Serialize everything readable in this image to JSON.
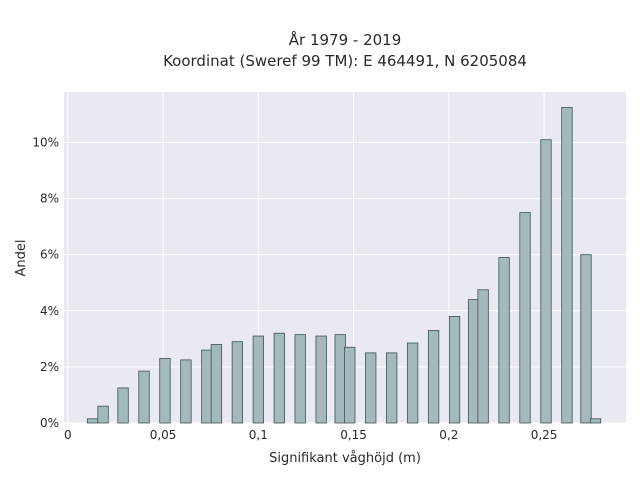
{
  "chart_data": {
    "type": "bar",
    "title_lines": [
      "År 1979 - 2019",
      "Koordinat (Sweref 99 TM): E 464491, N 6205084"
    ],
    "xlabel": "Signifikant våghöjd (m)",
    "ylabel": "Andel",
    "xlim": [
      -0.002,
      0.293
    ],
    "ylim": [
      0,
      0.118
    ],
    "grid": true,
    "x_ticks": [
      {
        "value": 0,
        "label": "0"
      },
      {
        "value": 0.05,
        "label": "0,05"
      },
      {
        "value": 0.1,
        "label": "0,1"
      },
      {
        "value": 0.15,
        "label": "0,15"
      },
      {
        "value": 0.2,
        "label": "0,2"
      },
      {
        "value": 0.25,
        "label": "0,25"
      }
    ],
    "y_ticks": [
      {
        "value": 0,
        "label": "0%"
      },
      {
        "value": 0.02,
        "label": "2%"
      },
      {
        "value": 0.04,
        "label": "4%"
      },
      {
        "value": 0.06,
        "label": "6%"
      },
      {
        "value": 0.08,
        "label": "8%"
      },
      {
        "value": 0.1,
        "label": "10%"
      }
    ],
    "bar_width": 0.0055,
    "bar_color": "#a3b9bb",
    "bar_edge_color": "#3f5453",
    "plot_background": "#e9e9f1",
    "bars": [
      {
        "x": 0.013,
        "y": 0.0015
      },
      {
        "x": 0.0185,
        "y": 0.006
      },
      {
        "x": 0.029,
        "y": 0.0125
      },
      {
        "x": 0.04,
        "y": 0.0185
      },
      {
        "x": 0.051,
        "y": 0.023
      },
      {
        "x": 0.062,
        "y": 0.0225
      },
      {
        "x": 0.073,
        "y": 0.026
      },
      {
        "x": 0.078,
        "y": 0.028
      },
      {
        "x": 0.089,
        "y": 0.029
      },
      {
        "x": 0.1,
        "y": 0.031
      },
      {
        "x": 0.111,
        "y": 0.032
      },
      {
        "x": 0.122,
        "y": 0.0315
      },
      {
        "x": 0.133,
        "y": 0.031
      },
      {
        "x": 0.143,
        "y": 0.0315
      },
      {
        "x": 0.148,
        "y": 0.027
      },
      {
        "x": 0.159,
        "y": 0.025
      },
      {
        "x": 0.17,
        "y": 0.025
      },
      {
        "x": 0.181,
        "y": 0.0285
      },
      {
        "x": 0.192,
        "y": 0.033
      },
      {
        "x": 0.203,
        "y": 0.038
      },
      {
        "x": 0.213,
        "y": 0.044
      },
      {
        "x": 0.218,
        "y": 0.0475
      },
      {
        "x": 0.229,
        "y": 0.059
      },
      {
        "x": 0.24,
        "y": 0.075
      },
      {
        "x": 0.251,
        "y": 0.101
      },
      {
        "x": 0.262,
        "y": 0.1125
      },
      {
        "x": 0.272,
        "y": 0.06
      },
      {
        "x": 0.277,
        "y": 0.0015
      }
    ]
  }
}
